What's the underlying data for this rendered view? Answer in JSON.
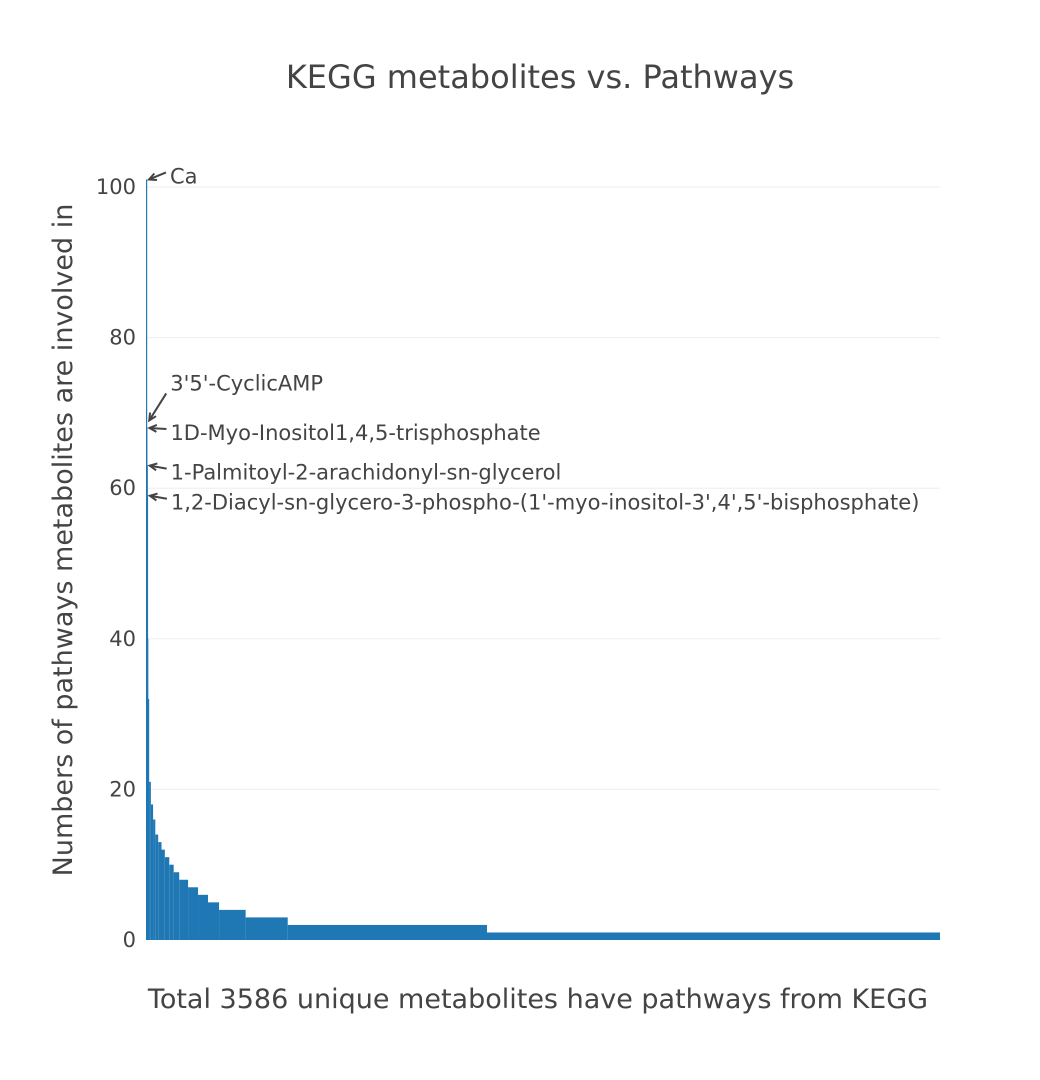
{
  "chart_data": {
    "type": "bar",
    "title": "KEGG metabolites vs. Pathways",
    "xlabel": "Total 3586 unique metabolites have pathways from KEGG",
    "ylabel": "Numbers of pathways metabolites are involved in",
    "ylim": [
      0,
      100
    ],
    "yticks": [
      0,
      20,
      40,
      60,
      80,
      100
    ],
    "grid": true,
    "legend": "none",
    "bar_color": "#1f77b4",
    "x_count": 3586,
    "segments": [
      {
        "x_start": 0,
        "x_end": 1,
        "value": 101
      },
      {
        "x_start": 1,
        "x_end": 3,
        "value": 68
      },
      {
        "x_start": 3,
        "x_end": 4,
        "value": 63
      },
      {
        "x_start": 4,
        "x_end": 5,
        "value": 59
      },
      {
        "x_start": 5,
        "x_end": 9,
        "value": 40
      },
      {
        "x_start": 9,
        "x_end": 14,
        "value": 32
      },
      {
        "x_start": 14,
        "x_end": 22,
        "value": 21
      },
      {
        "x_start": 22,
        "x_end": 32,
        "value": 18
      },
      {
        "x_start": 32,
        "x_end": 42,
        "value": 16
      },
      {
        "x_start": 42,
        "x_end": 55,
        "value": 14
      },
      {
        "x_start": 55,
        "x_end": 70,
        "value": 13
      },
      {
        "x_start": 70,
        "x_end": 85,
        "value": 12
      },
      {
        "x_start": 85,
        "x_end": 105,
        "value": 11
      },
      {
        "x_start": 105,
        "x_end": 125,
        "value": 10
      },
      {
        "x_start": 125,
        "x_end": 150,
        "value": 9
      },
      {
        "x_start": 150,
        "x_end": 190,
        "value": 8
      },
      {
        "x_start": 190,
        "x_end": 235,
        "value": 7
      },
      {
        "x_start": 235,
        "x_end": 280,
        "value": 6
      },
      {
        "x_start": 280,
        "x_end": 330,
        "value": 5
      },
      {
        "x_start": 330,
        "x_end": 450,
        "value": 4
      },
      {
        "x_start": 450,
        "x_end": 640,
        "value": 3
      },
      {
        "x_start": 640,
        "x_end": 1540,
        "value": 2
      },
      {
        "x_start": 1540,
        "x_end": 3586,
        "value": 1
      }
    ],
    "annotations": [
      {
        "text": "Ca",
        "x": 0,
        "y": 101
      },
      {
        "text": "3'5'-CyclicAMP",
        "x": 1,
        "y": 69
      },
      {
        "text": "1D-Myo-Inositol1,4,5-trisphosphate",
        "x": 2,
        "y": 68
      },
      {
        "text": "1-Palmitoyl-2-arachidonyl-sn-glycerol",
        "x": 3,
        "y": 63
      },
      {
        "text": "1,2-Diacyl-sn-glycero-3-phospho-(1'-myo-inositol-3',4',5'-bisphosphate)",
        "x": 4,
        "y": 59
      }
    ]
  }
}
